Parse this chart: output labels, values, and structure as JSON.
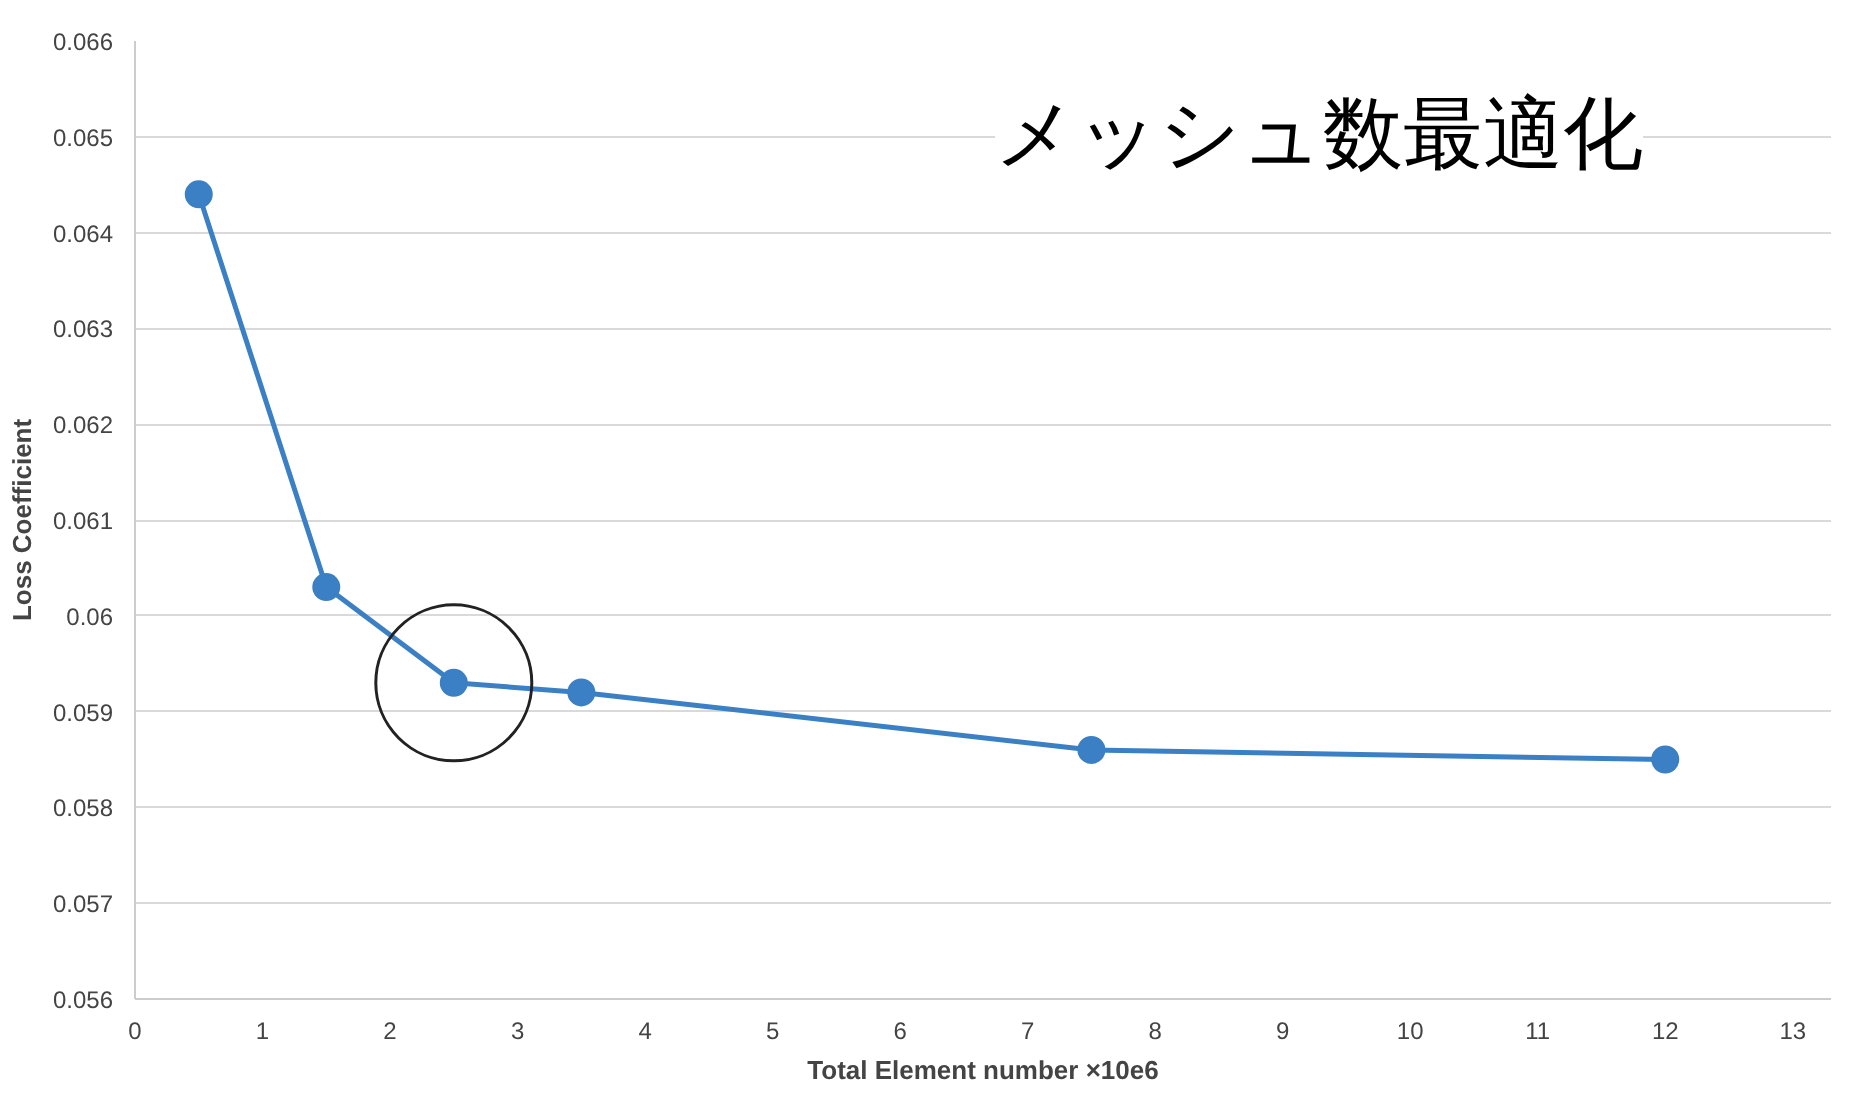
{
  "chart_data": {
    "type": "line",
    "xlabel": "Total Element number ×10e6",
    "ylabel": "Loss Coefficient",
    "annotations": [
      "メッシュ数最適化"
    ],
    "x": [
      0.5,
      1.5,
      2.5,
      3.5,
      7.5,
      12
    ],
    "series": [
      {
        "color": "#3b7fc4",
        "values": [
          0.0644,
          0.0603,
          0.0593,
          0.0592,
          0.0586,
          0.0585
        ]
      }
    ],
    "xlim": [
      0,
      13.3
    ],
    "xticks": [
      0,
      1,
      2,
      3,
      4,
      5,
      6,
      7,
      8,
      9,
      10,
      11,
      12,
      13
    ],
    "ylim": [
      0.056,
      0.066
    ],
    "yticks": [
      {
        "value": 0.056,
        "label": "0.056"
      },
      {
        "value": 0.057,
        "label": "0.057"
      },
      {
        "value": 0.058,
        "label": "0.058"
      },
      {
        "value": 0.059,
        "label": "0.059"
      },
      {
        "value": 0.06,
        "label": "0.06"
      },
      {
        "value": 0.061,
        "label": "0.061"
      },
      {
        "value": 0.062,
        "label": "0.062"
      },
      {
        "value": 0.063,
        "label": "0.063"
      },
      {
        "value": 0.064,
        "label": "0.064"
      },
      {
        "value": 0.065,
        "label": "0.065"
      },
      {
        "value": 0.066,
        "label": "0.066"
      }
    ],
    "grid": "y",
    "marker": "circle",
    "line_style": "solid"
  }
}
